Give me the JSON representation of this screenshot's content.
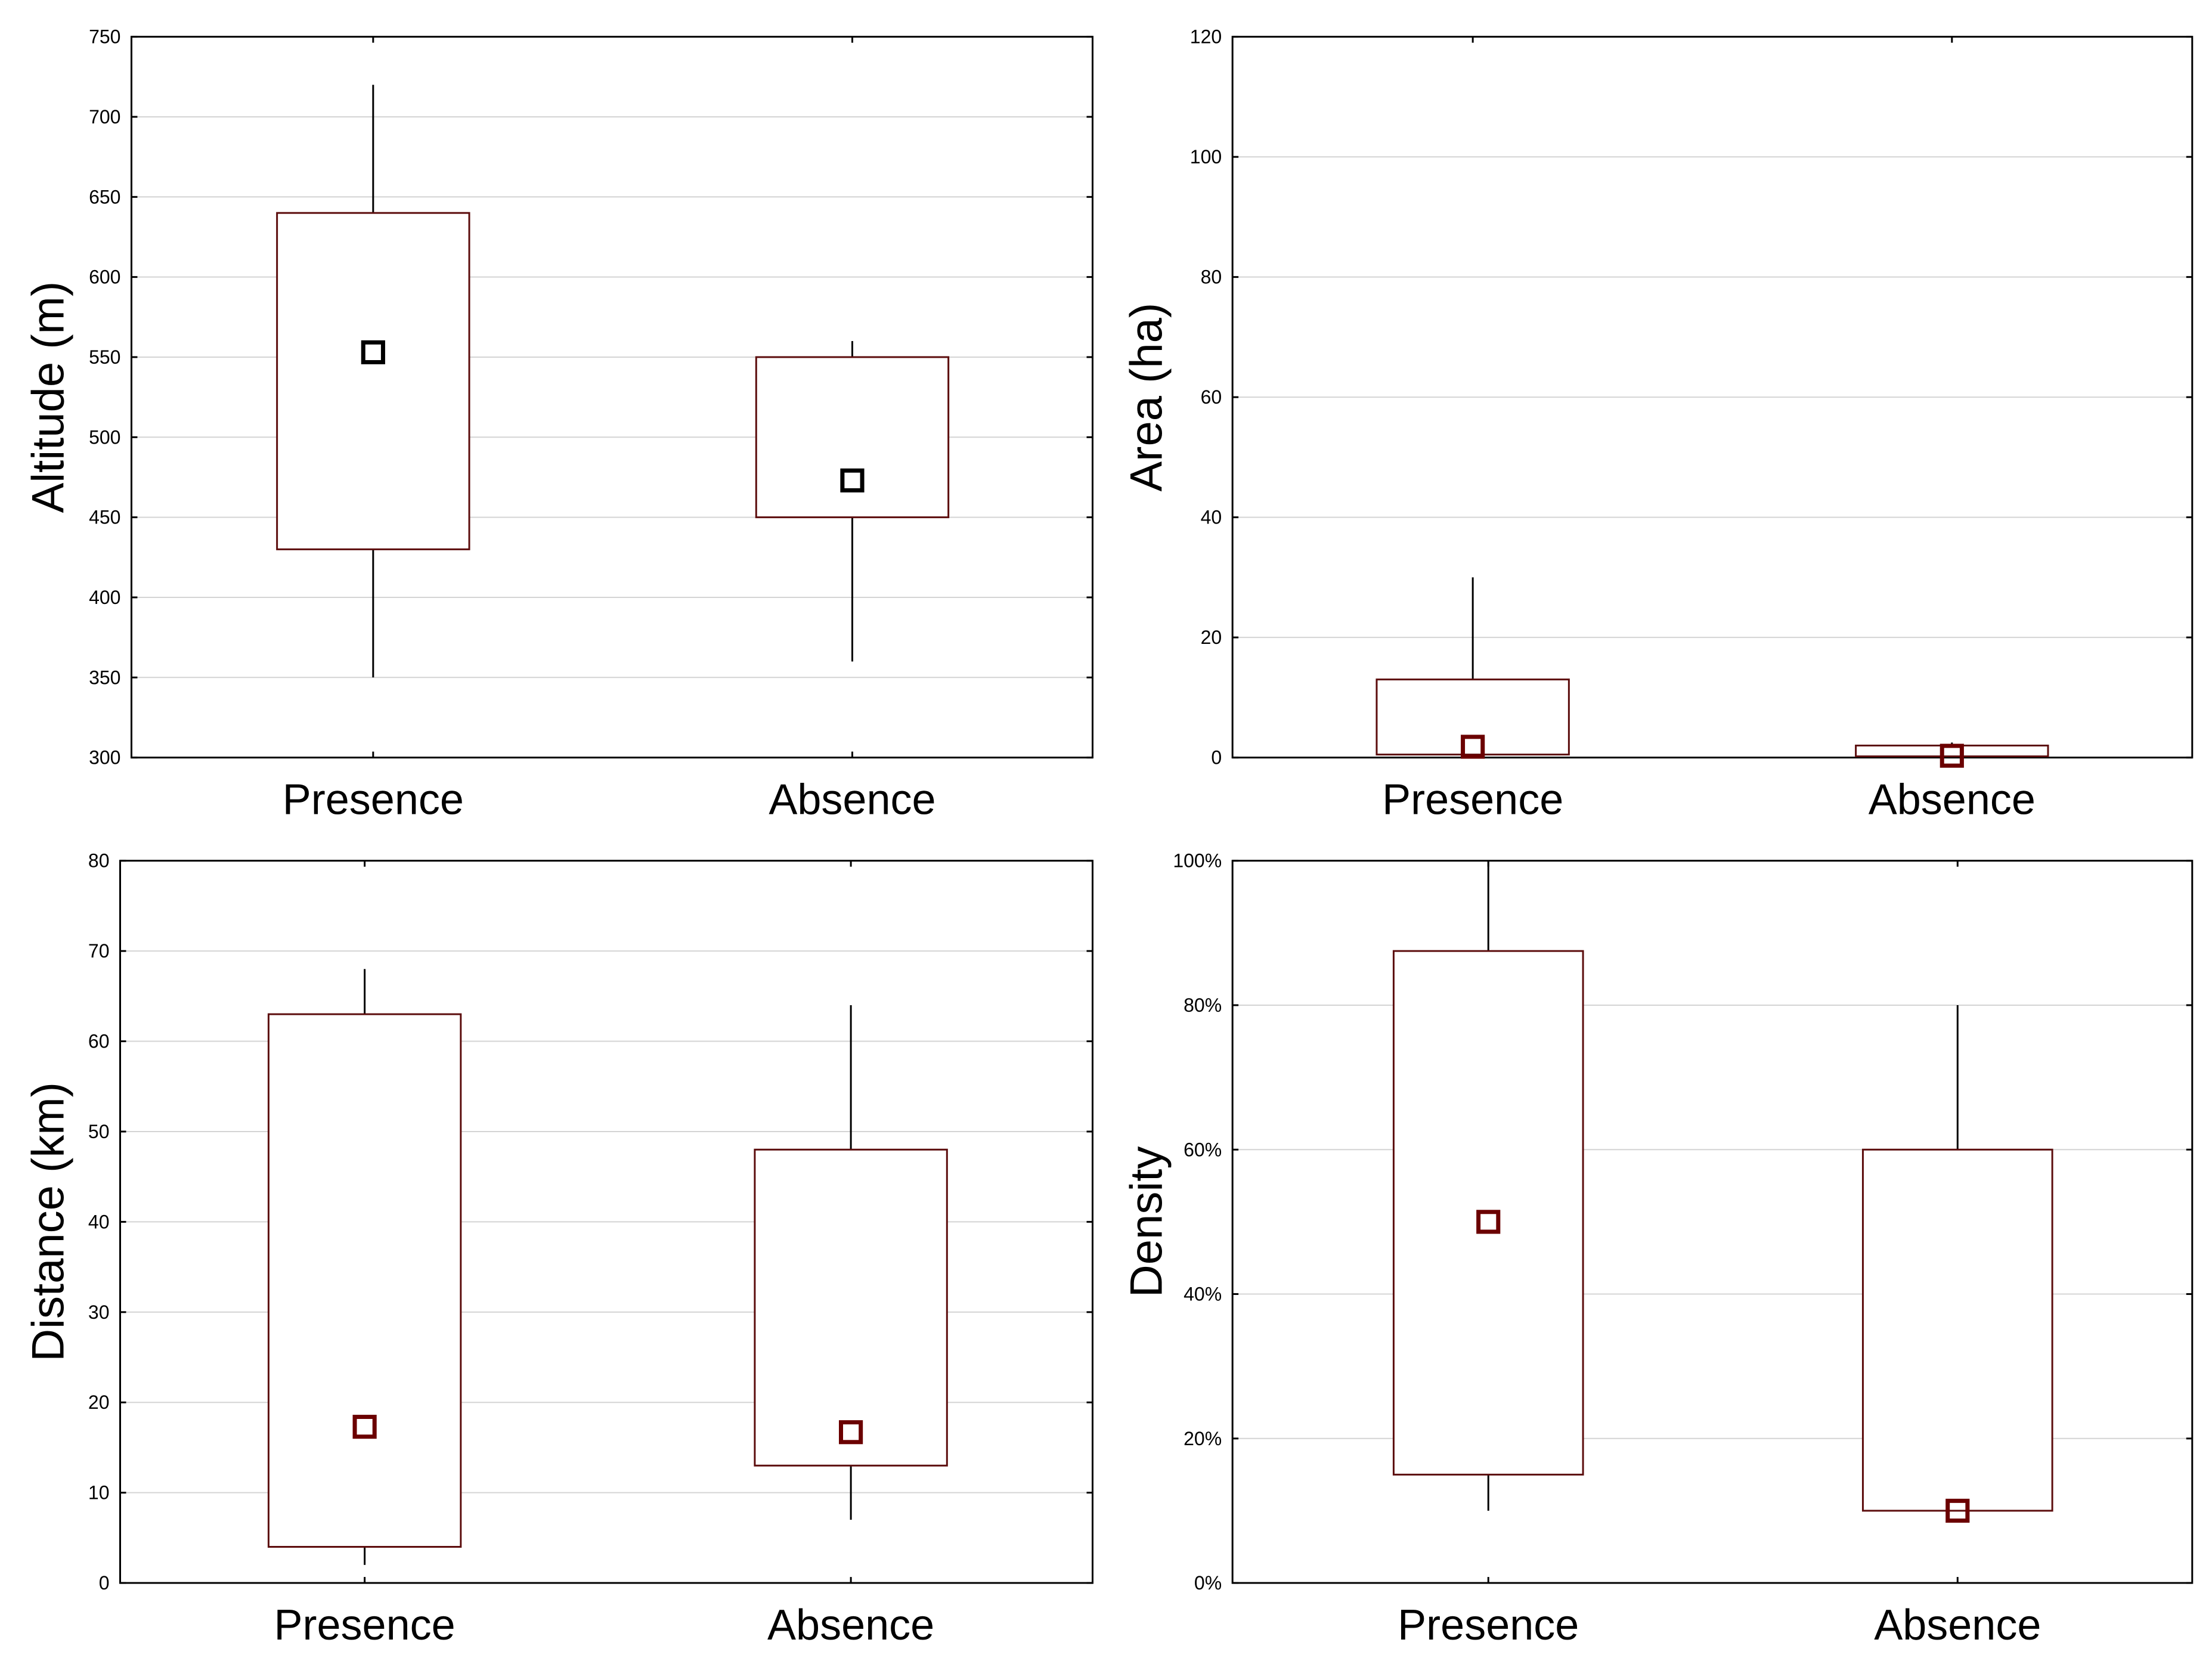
{
  "chart_data": [
    {
      "type": "box",
      "title": "",
      "xlabel": "",
      "ylabel": "Altitude (m)",
      "ylim": [
        300,
        750
      ],
      "ytick_step": 50,
      "yticks": [
        "300",
        "350",
        "400",
        "450",
        "500",
        "550",
        "600",
        "650",
        "700",
        "750"
      ],
      "categories": [
        "Presence",
        "Absence"
      ],
      "boxes": [
        {
          "category": "Presence",
          "whisker_low": 350,
          "q1": 430,
          "median": 553,
          "q3": 640,
          "whisker_high": 720
        },
        {
          "category": "Absence",
          "whisker_low": 360,
          "q1": 450,
          "median": 473,
          "q3": 550,
          "whisker_high": 560
        }
      ],
      "median_color": "#000000",
      "box_color": "#5c0d0d"
    },
    {
      "type": "box",
      "title": "",
      "xlabel": "",
      "ylabel": "Area (ha)",
      "ylim": [
        0,
        120
      ],
      "ytick_step": 20,
      "yticks": [
        "0",
        "20",
        "40",
        "60",
        "80",
        "100",
        "120"
      ],
      "categories": [
        "Presence",
        "Absence"
      ],
      "boxes": [
        {
          "category": "Presence",
          "whisker_low": 0,
          "q1": 0.5,
          "median": 1.8,
          "q3": 13,
          "whisker_high": 30
        },
        {
          "category": "Absence",
          "whisker_low": 0,
          "q1": 0.2,
          "median": 0.3,
          "q3": 2,
          "whisker_high": 2.5
        }
      ],
      "median_color": "#6b0000",
      "box_color": "#5c0d0d"
    },
    {
      "type": "box",
      "title": "",
      "xlabel": "",
      "ylabel": "Distance (km)",
      "ylim": [
        0,
        80
      ],
      "ytick_step": 10,
      "yticks": [
        "0",
        "10",
        "20",
        "30",
        "40",
        "50",
        "60",
        "70",
        "80"
      ],
      "categories": [
        "Presence",
        "Absence"
      ],
      "boxes": [
        {
          "category": "Presence",
          "whisker_low": 2,
          "q1": 4,
          "median": 17.3,
          "q3": 63,
          "whisker_high": 68
        },
        {
          "category": "Absence",
          "whisker_low": 7,
          "q1": 13,
          "median": 16.7,
          "q3": 48,
          "whisker_high": 64
        }
      ],
      "median_color": "#6b0000",
      "box_color": "#5c0d0d"
    },
    {
      "type": "box",
      "title": "",
      "xlabel": "",
      "ylabel": "Density",
      "ylim": [
        0,
        100
      ],
      "ytick_step": 20,
      "yticks": [
        "0%",
        "20%",
        "40%",
        "60%",
        "80%",
        "100%"
      ],
      "categories": [
        "Presence",
        "Absence"
      ],
      "boxes": [
        {
          "category": "Presence",
          "whisker_low": 10,
          "q1": 15,
          "median": 50,
          "q3": 87.5,
          "whisker_high": 100
        },
        {
          "category": "Absence",
          "whisker_low": 10,
          "q1": 10,
          "median": 10,
          "q3": 60,
          "whisker_high": 80
        }
      ],
      "median_color": "#6b0000",
      "box_color": "#5c0d0d"
    }
  ]
}
